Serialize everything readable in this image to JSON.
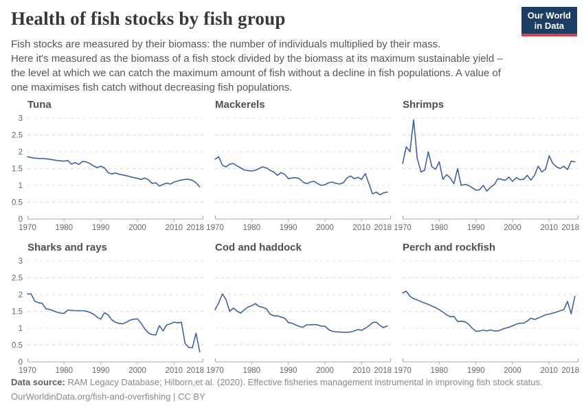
{
  "header": {
    "title": "Health of fish stocks by fish group",
    "subtitle_lines": [
      "Fish stocks are measured by their biomass: the number of individuals multiplied by their mass.",
      "Here it's measured as the biomass of a fish stock divided by the biomass at its maximum sustainable yield –",
      "the level at which we can catch the maximum amount of fish without a decline in fish populations. A value of",
      "one maximises fish catch without decreasing fish populations."
    ],
    "logo": {
      "line1": "Our World",
      "line2": "in Data"
    }
  },
  "colors": {
    "line": "#40619f",
    "gridline": "#dcdcdc",
    "axis": "#a8a8a8",
    "tick_label": "#666666",
    "logo_bg": "#1d3d63",
    "logo_accent": "#d8434b"
  },
  "chart_data": [
    {
      "type": "line",
      "title": "Tuna",
      "years": {
        "start": 1970,
        "end": 2017,
        "step": 1
      },
      "values": [
        1.85,
        1.83,
        1.81,
        1.8,
        1.8,
        1.79,
        1.78,
        1.76,
        1.74,
        1.73,
        1.72,
        1.74,
        1.63,
        1.68,
        1.62,
        1.71,
        1.7,
        1.65,
        1.58,
        1.53,
        1.57,
        1.52,
        1.38,
        1.34,
        1.37,
        1.33,
        1.31,
        1.29,
        1.26,
        1.23,
        1.21,
        1.18,
        1.22,
        1.17,
        1.06,
        1.08,
        0.98,
        1.03,
        1.07,
        1.04,
        1.1,
        1.13,
        1.16,
        1.18,
        1.18,
        1.15,
        1.08,
        0.96
      ],
      "xlim": [
        1970,
        2018
      ],
      "ylim": [
        0,
        3
      ],
      "yticks": [
        0,
        0.5,
        1,
        1.5,
        2,
        2.5,
        3
      ],
      "xtick_labels": [
        1970,
        1980,
        1990,
        2000,
        2010,
        2018
      ],
      "grid": "dashed-horizontal",
      "show_y_labels": true
    },
    {
      "type": "line",
      "title": "Mackerels",
      "years": {
        "start": 1970,
        "end": 2017,
        "step": 1
      },
      "values": [
        1.78,
        1.85,
        1.6,
        1.55,
        1.63,
        1.65,
        1.58,
        1.52,
        1.46,
        1.44,
        1.43,
        1.45,
        1.5,
        1.55,
        1.52,
        1.45,
        1.4,
        1.3,
        1.38,
        1.33,
        1.2,
        1.22,
        1.23,
        1.2,
        1.1,
        1.05,
        1.1,
        1.12,
        1.05,
        1.0,
        1.02,
        1.08,
        1.1,
        1.06,
        1.04,
        1.08,
        1.22,
        1.28,
        1.2,
        1.24,
        1.18,
        1.35,
        1.05,
        0.75,
        0.8,
        0.72,
        0.78,
        0.8
      ],
      "xlim": [
        1970,
        2018
      ],
      "ylim": [
        0,
        3
      ],
      "yticks": [
        0,
        0.5,
        1,
        1.5,
        2,
        2.5,
        3
      ],
      "xtick_labels": [
        1970,
        1980,
        1990,
        2000,
        2010,
        2018
      ],
      "grid": "dashed-horizontal",
      "show_y_labels": false
    },
    {
      "type": "line",
      "title": "Shrimps",
      "years": {
        "start": 1970,
        "end": 2017,
        "step": 1
      },
      "values": [
        1.65,
        2.15,
        2.0,
        2.95,
        1.8,
        1.4,
        1.45,
        2.0,
        1.55,
        1.48,
        1.7,
        1.18,
        1.32,
        1.22,
        1.05,
        1.5,
        1.0,
        1.03,
        1.0,
        0.93,
        0.86,
        0.87,
        1.0,
        0.83,
        0.95,
        1.02,
        1.2,
        1.18,
        1.15,
        1.25,
        1.12,
        1.23,
        1.17,
        1.18,
        1.3,
        1.16,
        1.3,
        1.57,
        1.4,
        1.48,
        1.88,
        1.65,
        1.55,
        1.5,
        1.57,
        1.47,
        1.72,
        1.7
      ],
      "xlim": [
        1970,
        2018
      ],
      "ylim": [
        0,
        3
      ],
      "yticks": [
        0,
        0.5,
        1,
        1.5,
        2,
        2.5,
        3
      ],
      "xtick_labels": [
        1970,
        1980,
        1990,
        2000,
        2010,
        2018
      ],
      "grid": "dashed-horizontal",
      "show_y_labels": false
    },
    {
      "type": "line",
      "title": "Sharks and rays",
      "years": {
        "start": 1970,
        "end": 2017,
        "step": 1
      },
      "values": [
        2.02,
        2.02,
        1.8,
        1.76,
        1.74,
        1.58,
        1.56,
        1.52,
        1.48,
        1.45,
        1.44,
        1.54,
        1.53,
        1.52,
        1.52,
        1.52,
        1.51,
        1.47,
        1.42,
        1.33,
        1.27,
        1.46,
        1.4,
        1.25,
        1.18,
        1.14,
        1.13,
        1.18,
        1.24,
        1.27,
        1.28,
        1.15,
        0.98,
        0.86,
        0.81,
        0.8,
        1.08,
        0.92,
        1.1,
        1.13,
        1.18,
        1.16,
        1.18,
        0.55,
        0.43,
        0.42,
        0.85,
        0.3
      ],
      "xlim": [
        1970,
        2018
      ],
      "ylim": [
        0,
        3
      ],
      "yticks": [
        0,
        0.5,
        1,
        1.5,
        2,
        2.5,
        3
      ],
      "xtick_labels": [
        1970,
        1980,
        1990,
        2000,
        2010,
        2018
      ],
      "grid": "dashed-horizontal",
      "show_y_labels": true
    },
    {
      "type": "line",
      "title": "Cod and haddock",
      "years": {
        "start": 1970,
        "end": 2017,
        "step": 1
      },
      "values": [
        1.55,
        1.75,
        2.02,
        1.85,
        1.5,
        1.6,
        1.51,
        1.45,
        1.55,
        1.63,
        1.67,
        1.73,
        1.65,
        1.62,
        1.58,
        1.42,
        1.37,
        1.37,
        1.33,
        1.3,
        1.17,
        1.15,
        1.1,
        1.05,
        1.03,
        1.1,
        1.1,
        1.11,
        1.1,
        1.06,
        1.06,
        0.96,
        0.91,
        0.89,
        0.89,
        0.88,
        0.88,
        0.89,
        0.92,
        0.96,
        0.94,
        1.0,
        1.07,
        1.17,
        1.18,
        1.08,
        1.02,
        1.07
      ],
      "xlim": [
        1970,
        2018
      ],
      "ylim": [
        0,
        3
      ],
      "yticks": [
        0,
        0.5,
        1,
        1.5,
        2,
        2.5,
        3
      ],
      "xtick_labels": [
        1970,
        1980,
        1990,
        2000,
        2010,
        2018
      ],
      "grid": "dashed-horizontal",
      "show_y_labels": false
    },
    {
      "type": "line",
      "title": "Perch and rockfish",
      "years": {
        "start": 1970,
        "end": 2017,
        "step": 1
      },
      "values": [
        2.05,
        2.1,
        1.95,
        1.88,
        1.84,
        1.79,
        1.75,
        1.71,
        1.66,
        1.61,
        1.55,
        1.48,
        1.4,
        1.34,
        1.35,
        1.2,
        1.21,
        1.19,
        1.12,
        1.0,
        0.91,
        0.92,
        0.94,
        0.92,
        0.95,
        0.92,
        0.92,
        0.96,
        1.0,
        1.03,
        1.07,
        1.12,
        1.15,
        1.15,
        1.21,
        1.3,
        1.26,
        1.3,
        1.35,
        1.4,
        1.42,
        1.45,
        1.48,
        1.52,
        1.55,
        1.8,
        1.43,
        1.95
      ],
      "xlim": [
        1970,
        2018
      ],
      "ylim": [
        0,
        3
      ],
      "yticks": [
        0,
        0.5,
        1,
        1.5,
        2,
        2.5,
        3
      ],
      "xtick_labels": [
        1970,
        1980,
        1990,
        2000,
        2010,
        2018
      ],
      "grid": "dashed-horizontal",
      "show_y_labels": false
    }
  ],
  "footer": {
    "source_label": "Data source:",
    "source_text": "RAM Legacy Database; Hilborn,et al. (2020). Effective fisheries management instrumental in improving fish stock status.",
    "license_line": "OurWorldinData.org/fish-and-overfishing | CC BY"
  }
}
